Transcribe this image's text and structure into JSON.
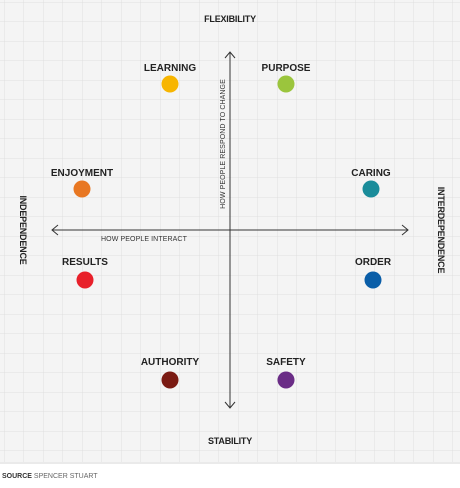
{
  "axes": {
    "top_label": "FLEXIBILITY",
    "bottom_label": "STABILITY",
    "left_label": "INDEPENDENCE",
    "right_label": "INTERDEPENDENCE",
    "horizontal_caption": "HOW PEOPLE INTERACT",
    "vertical_caption": "HOW PEOPLE RESPOND TO CHANGE"
  },
  "items": [
    {
      "label": "LEARNING",
      "color": "#f7b500"
    },
    {
      "label": "PURPOSE",
      "color": "#9bc53d"
    },
    {
      "label": "ENJOYMENT",
      "color": "#e87722"
    },
    {
      "label": "CARING",
      "color": "#1a8c9a"
    },
    {
      "label": "RESULTS",
      "color": "#e8202a"
    },
    {
      "label": "ORDER",
      "color": "#0a5ea8"
    },
    {
      "label": "AUTHORITY",
      "color": "#7a1a12"
    },
    {
      "label": "SAFETY",
      "color": "#6a2c86"
    }
  ],
  "source": {
    "prefix": "SOURCE",
    "text": "SPENCER STUART"
  },
  "colors": {
    "grid": "#dcdcdc",
    "axis": "#333333",
    "background": "#f3f3f3",
    "divider": "#b0b0b0"
  }
}
